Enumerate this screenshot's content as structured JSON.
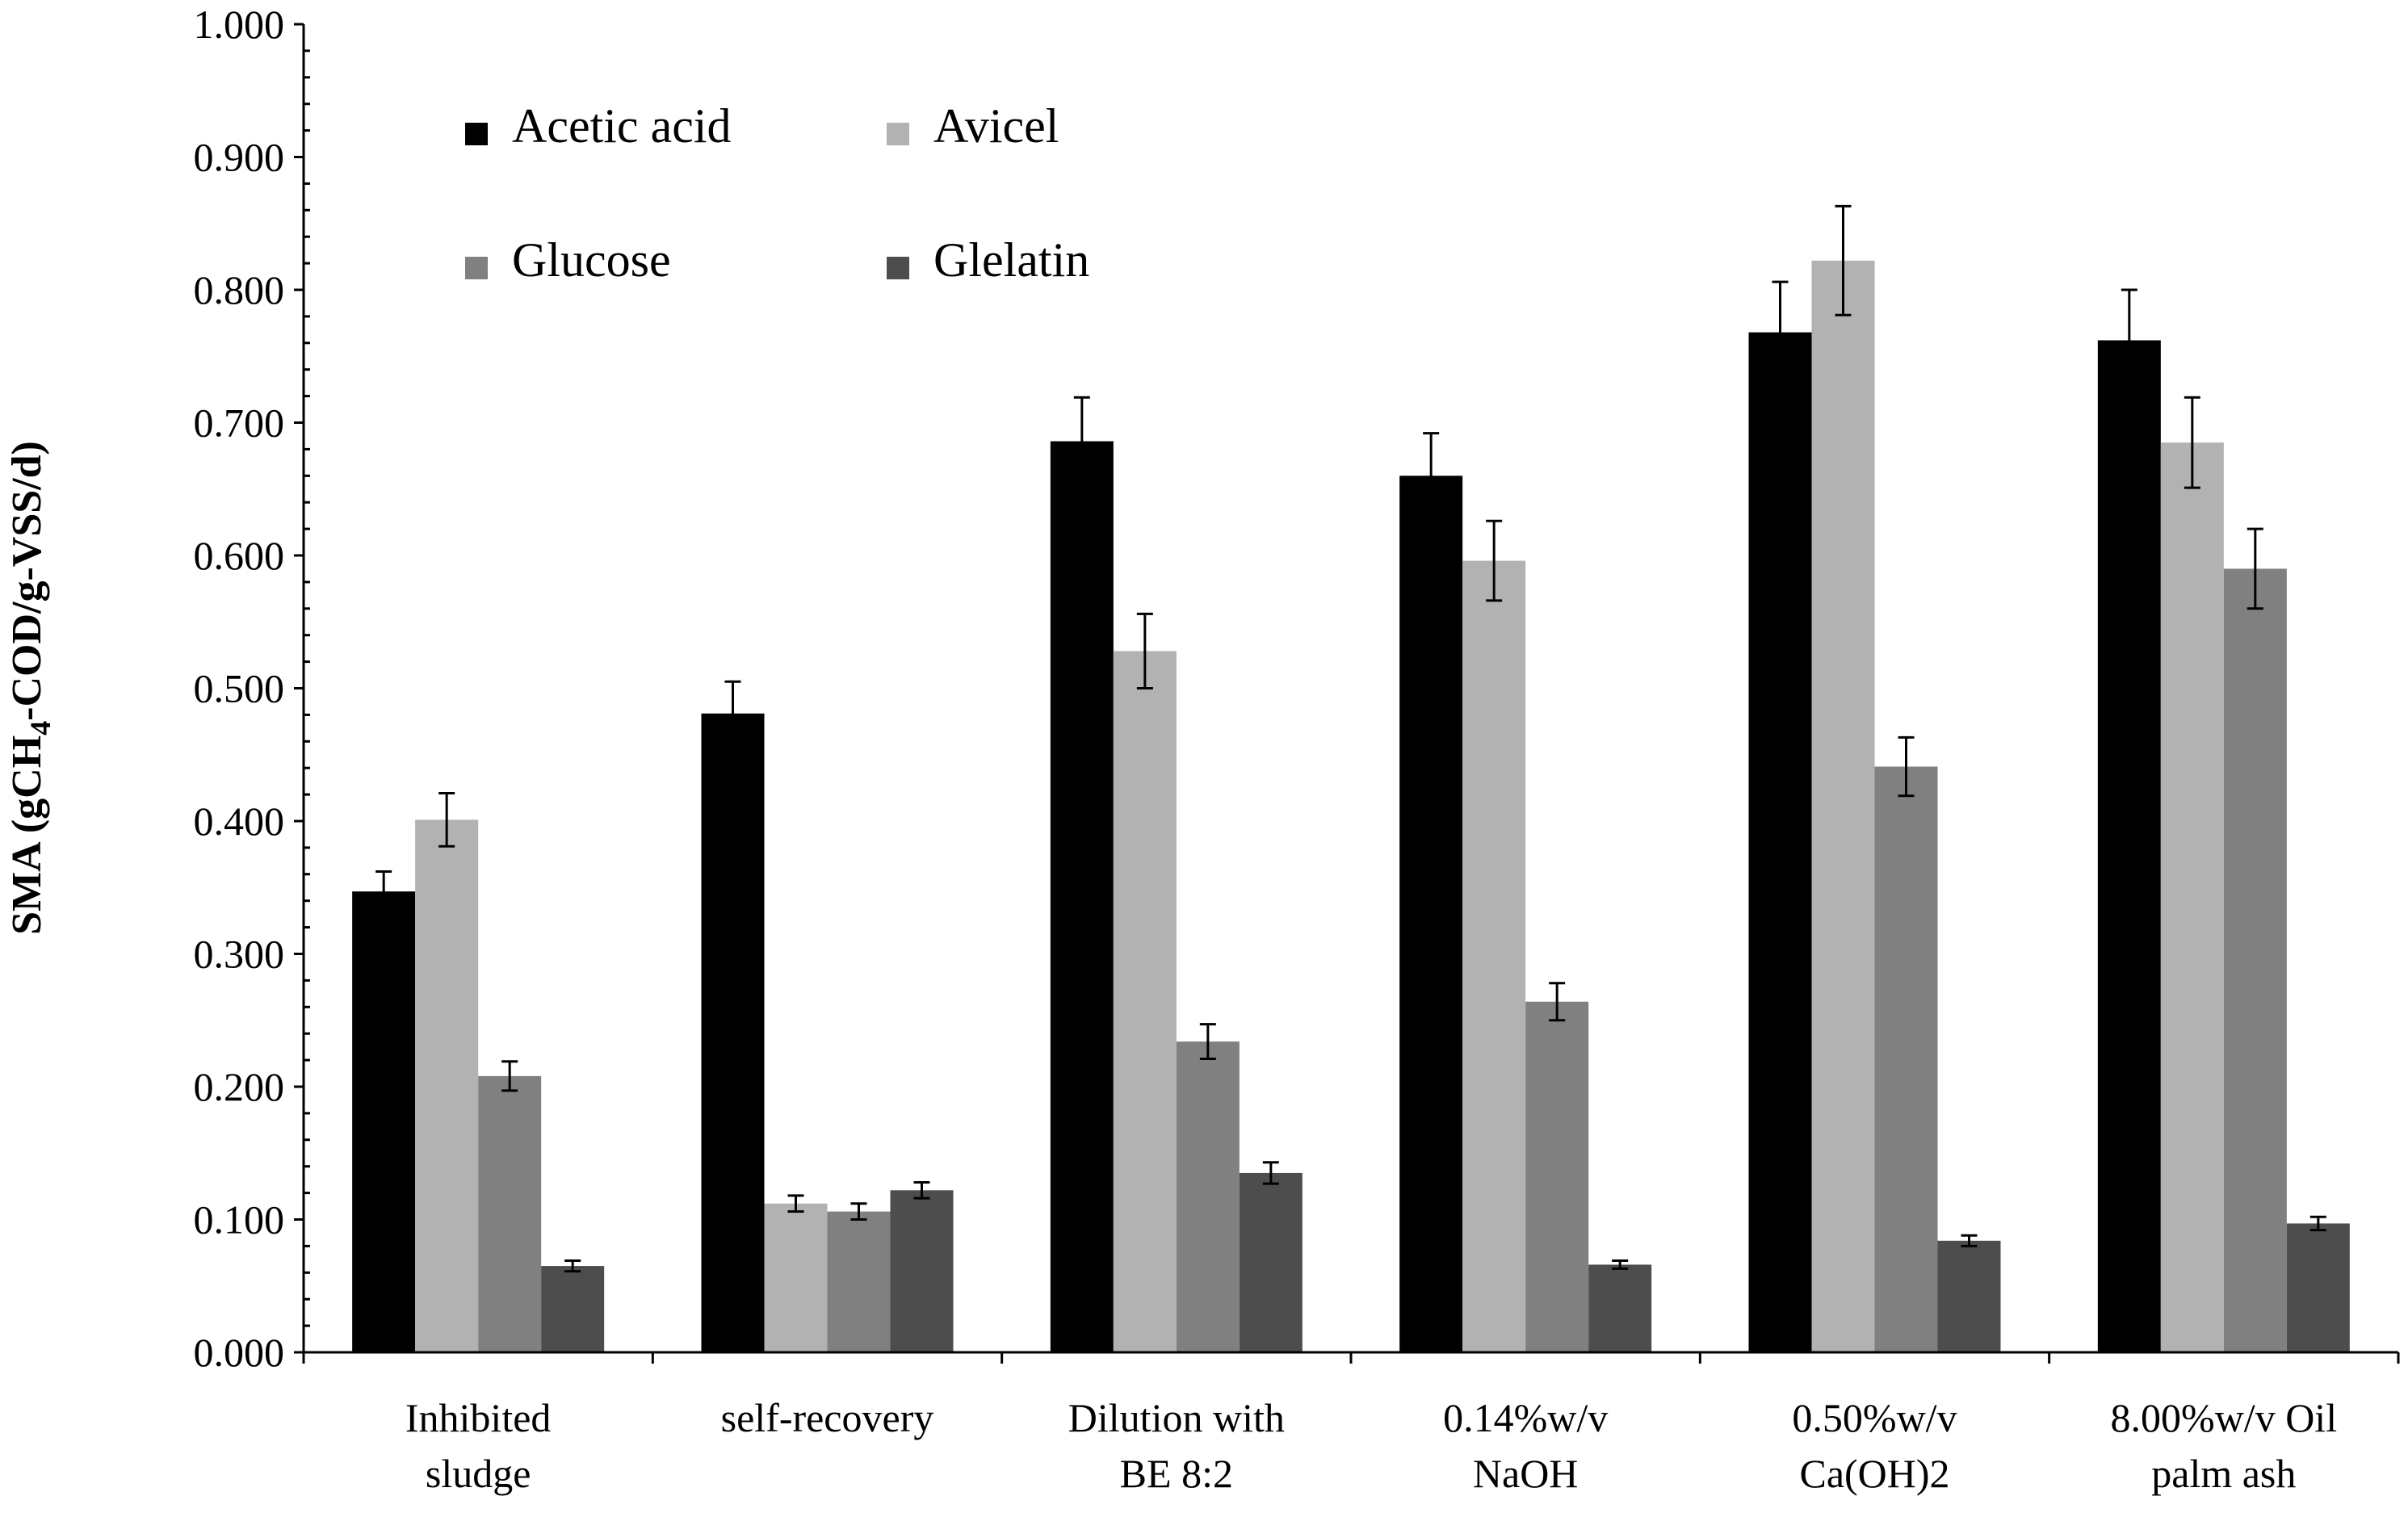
{
  "chart_data": {
    "type": "bar",
    "title": "",
    "xlabel": "",
    "ylabel_parts": [
      "SMA (gCH",
      "4",
      "-COD/g-VSS/d)"
    ],
    "ylim": [
      0,
      1.0
    ],
    "yticks": [
      "0.000",
      "0.100",
      "0.200",
      "0.300",
      "0.400",
      "0.500",
      "0.600",
      "0.700",
      "0.800",
      "0.900",
      "1.000"
    ],
    "grid": false,
    "legend_position": "top-left",
    "categories": [
      [
        "Inhibited",
        "sludge"
      ],
      [
        "self-recovery"
      ],
      [
        "Dilution with",
        "BE 8:2"
      ],
      [
        "0.14%w/v",
        "NaOH"
      ],
      [
        "0.50%w/v",
        "Ca(OH)2"
      ],
      [
        "8.00%w/v Oil",
        "palm ash"
      ]
    ],
    "series": [
      {
        "name": "Acetic acid",
        "color": "#000000",
        "values": [
          0.347,
          0.481,
          0.686,
          0.66,
          0.768,
          0.762
        ],
        "errors": [
          0.015,
          0.024,
          0.033,
          0.032,
          0.038,
          0.038
        ]
      },
      {
        "name": "Avicel",
        "color": "#b2b2b2",
        "values": [
          0.401,
          0.112,
          0.528,
          0.596,
          0.822,
          0.685
        ],
        "errors": [
          0.02,
          0.006,
          0.028,
          0.03,
          0.041,
          0.034
        ]
      },
      {
        "name": "Glucose",
        "color": "#808080",
        "values": [
          0.208,
          0.106,
          0.234,
          0.264,
          0.441,
          0.59
        ],
        "errors": [
          0.011,
          0.006,
          0.013,
          0.014,
          0.022,
          0.03
        ]
      },
      {
        "name": "Glelatin",
        "color": "#4d4d4d",
        "values": [
          0.065,
          0.122,
          0.135,
          0.066,
          0.084,
          0.097
        ],
        "errors": [
          0.004,
          0.006,
          0.008,
          0.003,
          0.004,
          0.005
        ]
      }
    ]
  }
}
